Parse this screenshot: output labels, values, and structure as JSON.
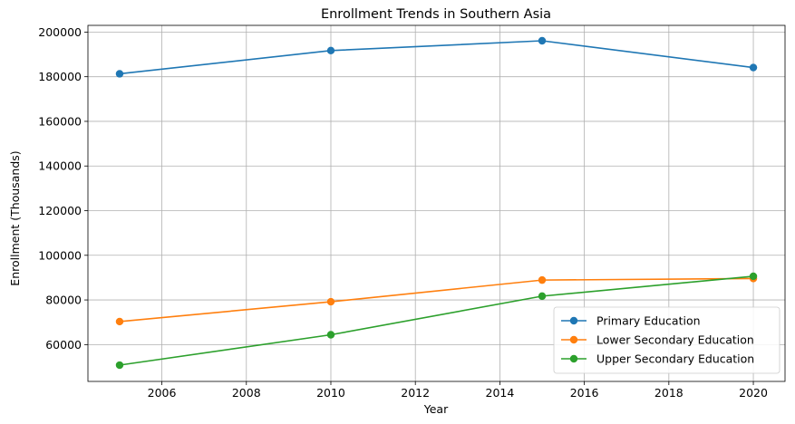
{
  "chart_data": {
    "type": "line",
    "title": "Enrollment Trends in Southern Asia",
    "xlabel": "Year",
    "ylabel": "Enrollment (Thousands)",
    "x": [
      2005,
      2010,
      2015,
      2020
    ],
    "xlim": [
      2004.25,
      2020.75
    ],
    "ylim": [
      43500,
      203000
    ],
    "xticks": [
      2006,
      2008,
      2010,
      2012,
      2014,
      2016,
      2018,
      2020
    ],
    "yticks": [
      60000,
      80000,
      100000,
      120000,
      140000,
      160000,
      180000,
      200000
    ],
    "grid": true,
    "legend_position": "lower-right",
    "series": [
      {
        "name": "Primary Education",
        "color": "#1f77b4",
        "values": [
          181300,
          191700,
          196100,
          184100
        ]
      },
      {
        "name": "Lower Secondary Education",
        "color": "#ff7f0e",
        "values": [
          70300,
          79200,
          88900,
          89600
        ]
      },
      {
        "name": "Upper Secondary Education",
        "color": "#2ca02c",
        "values": [
          50800,
          64400,
          81700,
          90600
        ]
      }
    ]
  }
}
